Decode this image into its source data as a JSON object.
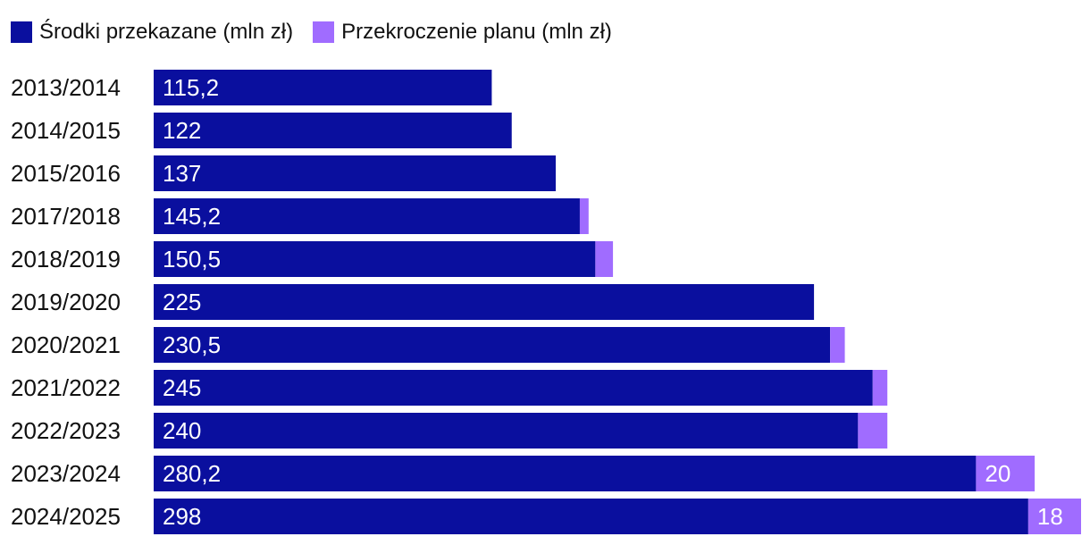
{
  "colors": {
    "funds": "#0a0f9e",
    "overrun": "#a06cff",
    "text": "#111111",
    "label": "#ffffff"
  },
  "legend": [
    {
      "label": "Środki przekazane (mln zł)",
      "color": "#0a0f9e"
    },
    {
      "label": "Przekroczenie planu (mln zł)",
      "color": "#a06cff"
    }
  ],
  "chart_data": {
    "type": "bar",
    "orientation": "horizontal",
    "stacked": true,
    "title": "",
    "xlabel": "",
    "ylabel": "",
    "grid": false,
    "legend_position": "top-left",
    "xlim": [
      0,
      316
    ],
    "categories": [
      "2013/2014",
      "2014/2015",
      "2015/2016",
      "2017/2018",
      "2018/2019",
      "2019/2020",
      "2020/2021",
      "2021/2022",
      "2022/2023",
      "2023/2024",
      "2024/2025"
    ],
    "series": [
      {
        "name": "Środki przekazane (mln zł)",
        "values": [
          115.2,
          122,
          137,
          145.2,
          150.5,
          225,
          230.5,
          245,
          240,
          280.2,
          298
        ],
        "labels": [
          "115,2",
          "122",
          "137",
          "145,2",
          "150,5",
          "225",
          "230,5",
          "245",
          "240",
          "280,2",
          "298"
        ]
      },
      {
        "name": "Przekroczenie planu (mln zł)",
        "values": [
          0,
          0,
          0,
          3,
          6,
          0,
          5,
          5,
          10,
          20,
          18
        ],
        "labels": [
          "",
          "",
          "",
          "",
          "",
          "",
          "",
          "",
          "",
          "20",
          "18"
        ]
      }
    ]
  }
}
